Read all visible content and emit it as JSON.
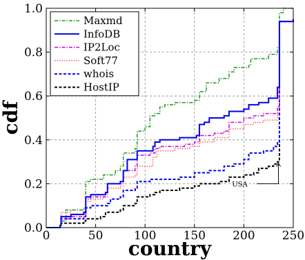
{
  "chart_data": {
    "type": "line",
    "step": true,
    "xlabel": "country",
    "ylabel": "cdf",
    "xlim": [
      0,
      250
    ],
    "ylim": [
      0,
      1.0
    ],
    "xticks": [
      0,
      50,
      100,
      150,
      200,
      250
    ],
    "yticks": [
      0.0,
      0.2,
      0.4,
      0.6,
      0.8,
      1.0
    ],
    "grid": true,
    "legend_position": "top-left",
    "annotation": {
      "text": "USA",
      "target": [
        235,
        0.3
      ]
    },
    "series": [
      {
        "name": "Maxmd",
        "color": "#1a9a1a",
        "dash": "dashdot",
        "points": [
          [
            0,
            0
          ],
          [
            14,
            0.01
          ],
          [
            15,
            0.03
          ],
          [
            20,
            0.08
          ],
          [
            38,
            0.09
          ],
          [
            40,
            0.21
          ],
          [
            45,
            0.22
          ],
          [
            55,
            0.22
          ],
          [
            58,
            0.24
          ],
          [
            70,
            0.26
          ],
          [
            75,
            0.28
          ],
          [
            78,
            0.34
          ],
          [
            90,
            0.36
          ],
          [
            92,
            0.44
          ],
          [
            100,
            0.46
          ],
          [
            105,
            0.51
          ],
          [
            110,
            0.52
          ],
          [
            115,
            0.55
          ],
          [
            120,
            0.56
          ],
          [
            130,
            0.57
          ],
          [
            150,
            0.58
          ],
          [
            155,
            0.62
          ],
          [
            162,
            0.66
          ],
          [
            175,
            0.68
          ],
          [
            185,
            0.71
          ],
          [
            190,
            0.73
          ],
          [
            205,
            0.74
          ],
          [
            207,
            0.77
          ],
          [
            225,
            0.79
          ],
          [
            234,
            0.82
          ],
          [
            236,
            0.98
          ],
          [
            240,
            1.0
          ],
          [
            250,
            1.0
          ]
        ]
      },
      {
        "name": "InfoDB",
        "color": "#0000ee",
        "dash": "solid",
        "points": [
          [
            0,
            0
          ],
          [
            14,
            0.01
          ],
          [
            15,
            0.05
          ],
          [
            25,
            0.06
          ],
          [
            38,
            0.07
          ],
          [
            40,
            0.14
          ],
          [
            45,
            0.15
          ],
          [
            60,
            0.16
          ],
          [
            62,
            0.2
          ],
          [
            75,
            0.21
          ],
          [
            78,
            0.26
          ],
          [
            82,
            0.31
          ],
          [
            90,
            0.31
          ],
          [
            92,
            0.35
          ],
          [
            100,
            0.35
          ],
          [
            108,
            0.37
          ],
          [
            110,
            0.39
          ],
          [
            115,
            0.4
          ],
          [
            135,
            0.41
          ],
          [
            152,
            0.42
          ],
          [
            155,
            0.47
          ],
          [
            160,
            0.48
          ],
          [
            165,
            0.5
          ],
          [
            180,
            0.51
          ],
          [
            185,
            0.53
          ],
          [
            200,
            0.54
          ],
          [
            205,
            0.56
          ],
          [
            215,
            0.57
          ],
          [
            225,
            0.59
          ],
          [
            234,
            0.64
          ],
          [
            236,
            0.94
          ],
          [
            250,
            0.95
          ]
        ]
      },
      {
        "name": "IP2Loc",
        "color": "#cc00cc",
        "dash": "dashdot",
        "points": [
          [
            0,
            0
          ],
          [
            14,
            0.01
          ],
          [
            15,
            0.04
          ],
          [
            25,
            0.05
          ],
          [
            38,
            0.05
          ],
          [
            40,
            0.13
          ],
          [
            45,
            0.14
          ],
          [
            60,
            0.16
          ],
          [
            62,
            0.2
          ],
          [
            75,
            0.21
          ],
          [
            78,
            0.26
          ],
          [
            90,
            0.28
          ],
          [
            92,
            0.33
          ],
          [
            105,
            0.34
          ],
          [
            110,
            0.36
          ],
          [
            115,
            0.37
          ],
          [
            140,
            0.38
          ],
          [
            150,
            0.39
          ],
          [
            155,
            0.42
          ],
          [
            170,
            0.43
          ],
          [
            180,
            0.44
          ],
          [
            185,
            0.48
          ],
          [
            200,
            0.5
          ],
          [
            210,
            0.51
          ],
          [
            220,
            0.52
          ],
          [
            234,
            0.55
          ],
          [
            236,
            0.94
          ],
          [
            250,
            0.95
          ]
        ]
      },
      {
        "name": "Soft77",
        "color": "#ff5555",
        "dash": "dotted",
        "points": [
          [
            0,
            0
          ],
          [
            14,
            0.01
          ],
          [
            15,
            0.07
          ],
          [
            25,
            0.08
          ],
          [
            38,
            0.09
          ],
          [
            40,
            0.12
          ],
          [
            45,
            0.13
          ],
          [
            58,
            0.14
          ],
          [
            62,
            0.18
          ],
          [
            75,
            0.19
          ],
          [
            78,
            0.23
          ],
          [
            90,
            0.24
          ],
          [
            92,
            0.28
          ],
          [
            100,
            0.28
          ],
          [
            108,
            0.32
          ],
          [
            112,
            0.35
          ],
          [
            130,
            0.36
          ],
          [
            145,
            0.37
          ],
          [
            155,
            0.39
          ],
          [
            170,
            0.41
          ],
          [
            185,
            0.45
          ],
          [
            200,
            0.47
          ],
          [
            210,
            0.48
          ],
          [
            220,
            0.49
          ],
          [
            234,
            0.52
          ],
          [
            236,
            0.94
          ],
          [
            250,
            0.95
          ]
        ]
      },
      {
        "name": "whois",
        "color": "#0000ee",
        "dash": "dashed",
        "points": [
          [
            0,
            0
          ],
          [
            14,
            0.01
          ],
          [
            15,
            0.04
          ],
          [
            30,
            0.04
          ],
          [
            38,
            0.05
          ],
          [
            40,
            0.09
          ],
          [
            45,
            0.1
          ],
          [
            62,
            0.11
          ],
          [
            65,
            0.13
          ],
          [
            75,
            0.14
          ],
          [
            78,
            0.17
          ],
          [
            90,
            0.18
          ],
          [
            92,
            0.21
          ],
          [
            100,
            0.21
          ],
          [
            105,
            0.22
          ],
          [
            115,
            0.22
          ],
          [
            135,
            0.23
          ],
          [
            150,
            0.25
          ],
          [
            165,
            0.26
          ],
          [
            180,
            0.28
          ],
          [
            190,
            0.29
          ],
          [
            200,
            0.31
          ],
          [
            205,
            0.34
          ],
          [
            220,
            0.35
          ],
          [
            230,
            0.37
          ],
          [
            234,
            0.39
          ],
          [
            236,
            0.94
          ],
          [
            250,
            0.95
          ]
        ]
      },
      {
        "name": "HostIP",
        "color": "#000000",
        "dash": "dashed",
        "points": [
          [
            0,
            0
          ],
          [
            14,
            0.01
          ],
          [
            15,
            0.02
          ],
          [
            38,
            0.03
          ],
          [
            40,
            0.04
          ],
          [
            55,
            0.05
          ],
          [
            60,
            0.07
          ],
          [
            75,
            0.08
          ],
          [
            78,
            0.1
          ],
          [
            90,
            0.11
          ],
          [
            92,
            0.14
          ],
          [
            105,
            0.15
          ],
          [
            110,
            0.16
          ],
          [
            115,
            0.17
          ],
          [
            135,
            0.18
          ],
          [
            150,
            0.19
          ],
          [
            155,
            0.2
          ],
          [
            175,
            0.21
          ],
          [
            185,
            0.23
          ],
          [
            200,
            0.24
          ],
          [
            210,
            0.25
          ],
          [
            215,
            0.27
          ],
          [
            225,
            0.28
          ],
          [
            230,
            0.29
          ],
          [
            234,
            0.3
          ],
          [
            236,
            0.94
          ],
          [
            250,
            0.95
          ]
        ]
      }
    ]
  }
}
